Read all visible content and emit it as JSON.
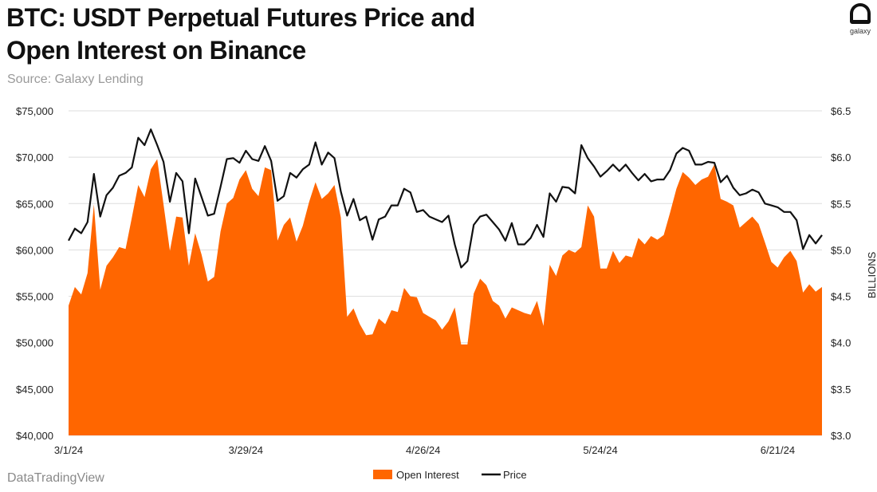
{
  "title_line1": "BTC: USDT Perpetual Futures Price and",
  "title_line2": "Open Interest on Binance",
  "source": "Source: Galaxy Lending",
  "footer": "DataTradingView",
  "logo_text": "galaxy",
  "colors": {
    "open_interest": "#ff6600",
    "price": "#111111",
    "grid": "#dddddd"
  },
  "chart_data": {
    "type": "area+line",
    "x_start": "3/1/24",
    "x_unit": "days since 3/1/24",
    "x_tick_labels": [
      {
        "day": 0,
        "label": "3/1/24"
      },
      {
        "day": 28,
        "label": "3/29/24"
      },
      {
        "day": 56,
        "label": "4/26/24"
      },
      {
        "day": 84,
        "label": "5/24/24"
      },
      {
        "day": 112,
        "label": "6/21/24"
      }
    ],
    "left_axis": {
      "ylim": [
        40000,
        75000
      ],
      "ticks": [
        "$40,000",
        "$45,000",
        "$50,000",
        "$55,000",
        "$60,000",
        "$65,000",
        "$70,000",
        "$75,000"
      ]
    },
    "right_axis": {
      "label": "BILLIONS",
      "ylim": [
        3.0,
        6.5
      ],
      "ticks": [
        "$3.0",
        "$3.5",
        "$4.0",
        "$4.5",
        "$5.0",
        "$5.5",
        "$6.0",
        "$6.5"
      ]
    },
    "legend": [
      "Open Interest",
      "Price"
    ],
    "legend_position": "bottom-center",
    "series": [
      {
        "name": "Open Interest",
        "axis": "right",
        "unit": "USD billions",
        "values": [
          4.4,
          4.6,
          4.52,
          4.75,
          5.49,
          4.57,
          4.83,
          4.92,
          5.03,
          5.01,
          5.35,
          5.7,
          5.57,
          5.87,
          5.98,
          5.49,
          4.99,
          5.36,
          5.35,
          4.83,
          5.18,
          4.95,
          4.66,
          4.71,
          5.2,
          5.5,
          5.56,
          5.76,
          5.86,
          5.66,
          5.58,
          5.89,
          5.86,
          5.1,
          5.27,
          5.35,
          5.09,
          5.26,
          5.52,
          5.73,
          5.55,
          5.61,
          5.7,
          5.35,
          4.28,
          4.37,
          4.2,
          4.08,
          4.09,
          4.26,
          4.2,
          4.35,
          4.33,
          4.59,
          4.5,
          4.49,
          4.32,
          4.28,
          4.24,
          4.14,
          4.23,
          4.38,
          3.98,
          3.98,
          4.53,
          4.69,
          4.62,
          4.45,
          4.4,
          4.26,
          4.38,
          4.35,
          4.32,
          4.3,
          4.45,
          4.18,
          4.84,
          4.72,
          4.94,
          5.0,
          4.97,
          5.03,
          5.48,
          5.36,
          4.8,
          4.8,
          4.99,
          4.86,
          4.94,
          4.92,
          5.13,
          5.06,
          5.15,
          5.11,
          5.16,
          5.4,
          5.66,
          5.84,
          5.78,
          5.7,
          5.76,
          5.79,
          5.92,
          5.55,
          5.52,
          5.48,
          5.24,
          5.3,
          5.36,
          5.28,
          5.08,
          4.87,
          4.81,
          4.92,
          4.99,
          4.88,
          4.54,
          4.63,
          4.55,
          4.6
        ]
      },
      {
        "name": "Price",
        "axis": "left",
        "unit": "USD thousands",
        "values": [
          61.0,
          62.3,
          61.8,
          63.0,
          68.2,
          63.6,
          65.9,
          66.7,
          68.0,
          68.3,
          68.9,
          72.1,
          71.3,
          73.0,
          71.3,
          69.5,
          65.2,
          68.3,
          67.4,
          61.8,
          67.7,
          65.7,
          63.7,
          63.9,
          66.8,
          69.8,
          69.9,
          69.4,
          70.7,
          69.8,
          69.6,
          71.2,
          69.6,
          65.3,
          65.8,
          68.3,
          67.8,
          68.7,
          69.2,
          71.6,
          69.2,
          70.5,
          69.9,
          66.3,
          63.7,
          65.5,
          63.2,
          63.6,
          61.1,
          63.3,
          63.6,
          64.8,
          64.8,
          66.6,
          66.2,
          64.1,
          64.3,
          63.6,
          63.3,
          63.0,
          63.7,
          60.6,
          58.1,
          58.8,
          62.7,
          63.6,
          63.8,
          63.0,
          62.2,
          61.0,
          62.9,
          60.6,
          60.6,
          61.3,
          62.7,
          61.4,
          66.1,
          65.2,
          66.8,
          66.7,
          66.1,
          71.3,
          69.9,
          69.0,
          67.9,
          68.5,
          69.2,
          68.5,
          69.2,
          68.3,
          67.5,
          68.2,
          67.4,
          67.6,
          67.6,
          68.6,
          70.4,
          71.0,
          70.7,
          69.2,
          69.2,
          69.5,
          69.4,
          67.3,
          68.0,
          66.7,
          65.9,
          66.1,
          66.5,
          66.2,
          65.0,
          64.8,
          64.6,
          64.1,
          64.1,
          63.2,
          60.1,
          61.6,
          60.7,
          61.6
        ]
      }
    ]
  }
}
